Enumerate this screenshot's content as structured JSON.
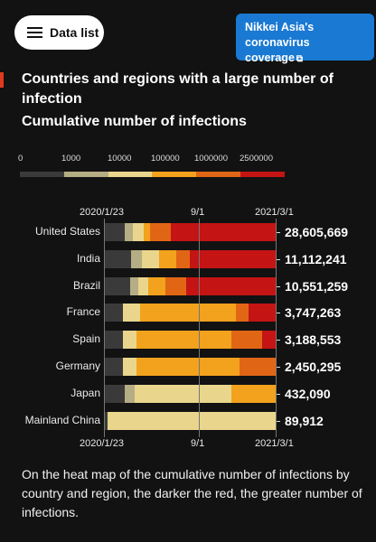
{
  "header": {
    "data_list_label": "Data list",
    "nikkei_line1": "Nikkei Asia's",
    "nikkei_line2": "coronavirus coverage",
    "nikkei_icon": "external-link-icon"
  },
  "title": "Countries and regions with a large number of infection",
  "subtitle": "Cumulative number of infections",
  "legend": {
    "ticks": [
      "0",
      "1000",
      "10000",
      "100000",
      "1000000",
      "2500000"
    ],
    "colors": [
      "#3a3a3a",
      "#b5ad84",
      "#e9d68c",
      "#f2a21c",
      "#e06616",
      "#c41414"
    ]
  },
  "axis": {
    "start": "2020/1/23",
    "mid": "9/1",
    "end": "2021/3/1"
  },
  "chart_data": {
    "type": "heatmap",
    "title": "Cumulative number of infections",
    "x_start": "2020/1/23",
    "x_ticks": [
      "2020/1/23",
      "9/1",
      "2021/3/1"
    ],
    "x_end": "2021/3/1",
    "legend_ticks": [
      0,
      1000,
      10000,
      100000,
      1000000,
      2500000
    ],
    "rows": [
      {
        "label": "United States",
        "value": "28,605,669"
      },
      {
        "label": "India",
        "value": "11,112,241"
      },
      {
        "label": "Brazil",
        "value": "10,551,259"
      },
      {
        "label": "France",
        "value": "3,747,263"
      },
      {
        "label": "Spain",
        "value": "3,188,553"
      },
      {
        "label": "Germany",
        "value": "2,450,295"
      },
      {
        "label": "Japan",
        "value": "432,090"
      },
      {
        "label": "Mainland China",
        "value": "89,912"
      }
    ]
  },
  "footnote": "On the heat map of the cumulative number of infections by country and region, the darker the red, the greater number of infections."
}
